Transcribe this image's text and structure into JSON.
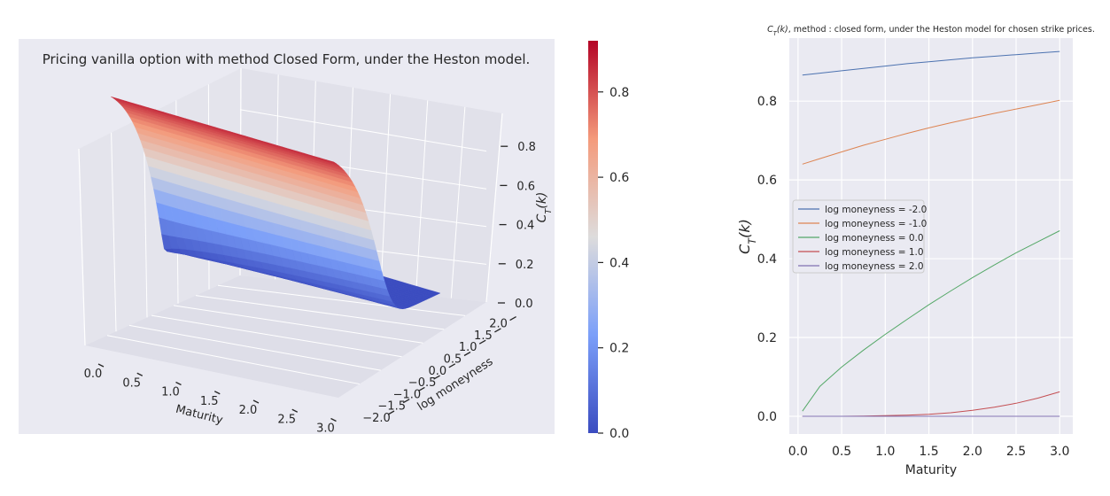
{
  "chart_data": [
    {
      "type": "surface",
      "title": "Pricing vanilla option with method Closed Form, under the Heston model.",
      "xlabel": "Maturity",
      "ylabel": "log moneyness",
      "zlabel": "C_T(k)",
      "x_range": [
        0.05,
        3.0
      ],
      "y_range": [
        -2.0,
        2.0
      ],
      "zlim": [
        0.0,
        0.92
      ],
      "x_ticks": [
        "0.0",
        "0.5",
        "1.0",
        "1.5",
        "2.0",
        "2.5",
        "3.0"
      ],
      "y_ticks": [
        "−2.0",
        "−1.5",
        "−1.0",
        "−0.5",
        "0.0",
        "0.5",
        "1.0",
        "1.5",
        "2.0"
      ],
      "z_ticks": [
        "0.0",
        "0.2",
        "0.4",
        "0.6",
        "0.8"
      ],
      "colormap": "coolwarm",
      "colorbar_ticks": [
        "0.0",
        "0.2",
        "0.4",
        "0.6",
        "0.8"
      ],
      "colorbar_range": [
        0.0,
        0.92
      ],
      "background": "#eaeaf2"
    },
    {
      "type": "line",
      "title": "C_T(k), method : closed form, under the Heston model for chosen strike prices.",
      "xlabel": "Maturity",
      "ylabel": "C_T(k)",
      "xlim": [
        -0.1,
        3.15
      ],
      "ylim": [
        -0.045,
        0.96
      ],
      "x_ticks": [
        "0.0",
        "0.5",
        "1.0",
        "1.5",
        "2.0",
        "2.5",
        "3.0"
      ],
      "y_ticks": [
        "0.0",
        "0.2",
        "0.4",
        "0.6",
        "0.8"
      ],
      "grid": true,
      "legend_position": "center-left",
      "x": [
        0.05,
        0.25,
        0.5,
        0.75,
        1.0,
        1.25,
        1.5,
        1.75,
        2.0,
        2.25,
        2.5,
        2.75,
        3.0
      ],
      "series": [
        {
          "name": "log moneyness = -2.0",
          "color": "#4c72b0",
          "values": [
            0.866,
            0.871,
            0.877,
            0.883,
            0.889,
            0.895,
            0.9,
            0.905,
            0.91,
            0.914,
            0.918,
            0.922,
            0.926
          ]
        },
        {
          "name": "log moneyness = -1.0",
          "color": "#dd8452",
          "values": [
            0.64,
            0.654,
            0.671,
            0.688,
            0.703,
            0.718,
            0.732,
            0.745,
            0.757,
            0.769,
            0.78,
            0.791,
            0.802
          ]
        },
        {
          "name": "log moneyness = 0.0",
          "color": "#55a868",
          "values": [
            0.013,
            0.076,
            0.125,
            0.168,
            0.208,
            0.246,
            0.283,
            0.318,
            0.352,
            0.384,
            0.415,
            0.443,
            0.471
          ]
        },
        {
          "name": "log moneyness = 1.0",
          "color": "#c44e52",
          "values": [
            0.0,
            0.0,
            0.0,
            0.0005,
            0.0015,
            0.003,
            0.005,
            0.009,
            0.015,
            0.023,
            0.033,
            0.046,
            0.062
          ]
        },
        {
          "name": "log moneyness = 2.0",
          "color": "#8172b3",
          "values": [
            0.0,
            0.0,
            0.0,
            0.0,
            0.0,
            0.0,
            0.0,
            0.0,
            0.0,
            0.0,
            0.0,
            0.0,
            0.0
          ]
        }
      ]
    }
  ]
}
